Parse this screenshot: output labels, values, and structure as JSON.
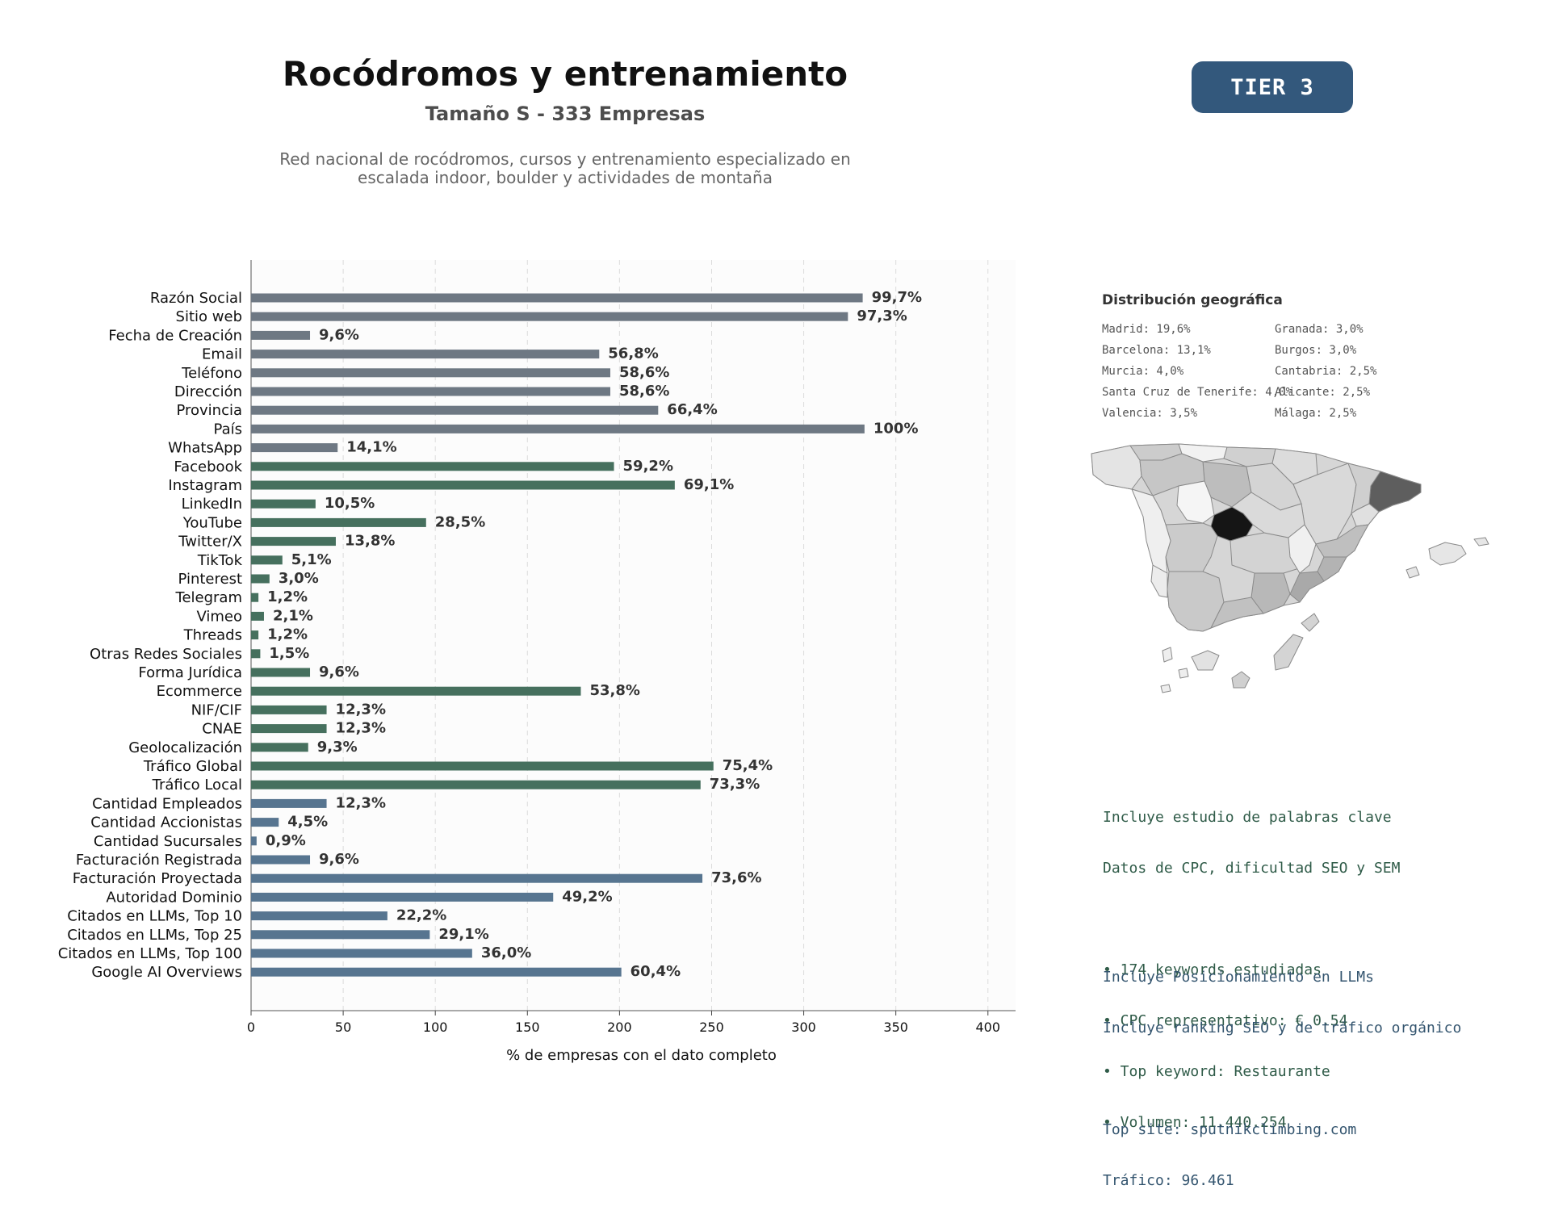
{
  "header": {
    "title": "Rocódromos y entrenamiento",
    "subtitle": "Tamaño S - 333 Empresas",
    "description_line1": "Red nacional de rocódromos, cursos y entrenamiento especializado en",
    "description_line2": "escalada indoor, boulder y actividades de montaña",
    "tier": "TIER 3"
  },
  "chart_data": {
    "type": "bar",
    "orientation": "horizontal",
    "xlabel": "% de empresas con el dato completo",
    "xlim": [
      0,
      415
    ],
    "xticks": [
      0,
      50,
      100,
      150,
      200,
      250,
      300,
      350,
      400
    ],
    "grid": "vertical-dashed",
    "colors": {
      "gray": "#6e7883",
      "green": "#46705e",
      "blue": "#577590"
    },
    "categories": [
      "Razón Social",
      "Sitio web",
      "Fecha de Creación",
      "Email",
      "Teléfono",
      "Dirección",
      "Provincia",
      "País",
      "WhatsApp",
      "Facebook",
      "Instagram",
      "LinkedIn",
      "YouTube",
      "Twitter/X",
      "TikTok",
      "Pinterest",
      "Telegram",
      "Vimeo",
      "Threads",
      "Otras Redes Sociales",
      "Forma Jurídica",
      "Ecommerce",
      "NIF/CIF",
      "CNAE",
      "Geolocalización",
      "Tráfico Global",
      "Tráfico Local",
      "Cantidad Empleados",
      "Cantidad Accionistas",
      "Cantidad Sucursales",
      "Facturación Registrada",
      "Facturación Proyectada",
      "Autoridad Dominio",
      "Citados en LLMs, Top 10",
      "Citados en LLMs, Top 25",
      "Citados en LLMs, Top 100",
      "Google AI Overviews"
    ],
    "values": [
      332,
      324,
      32,
      189,
      195,
      195,
      221,
      333,
      47,
      197,
      230,
      35,
      95,
      46,
      17,
      10,
      4,
      7,
      4,
      5,
      32,
      179,
      41,
      41,
      31,
      251,
      244,
      41,
      15,
      3,
      32,
      245,
      164,
      74,
      97,
      120,
      201
    ],
    "labels": [
      "99,7%",
      "97,3%",
      "9,6%",
      "56,8%",
      "58,6%",
      "58,6%",
      "66,4%",
      "100%",
      "14,1%",
      "59,2%",
      "69,1%",
      "10,5%",
      "28,5%",
      "13,8%",
      "5,1%",
      "3,0%",
      "1,2%",
      "2,1%",
      "1,2%",
      "1,5%",
      "9,6%",
      "53,8%",
      "12,3%",
      "12,3%",
      "9,3%",
      "75,4%",
      "73,3%",
      "12,3%",
      "4,5%",
      "0,9%",
      "9,6%",
      "73,6%",
      "49,2%",
      "22,2%",
      "29,1%",
      "36,0%",
      "60,4%"
    ],
    "groups": [
      "gray",
      "gray",
      "gray",
      "gray",
      "gray",
      "gray",
      "gray",
      "gray",
      "gray",
      "green",
      "green",
      "green",
      "green",
      "green",
      "green",
      "green",
      "green",
      "green",
      "green",
      "green",
      "green",
      "green",
      "green",
      "green",
      "green",
      "green",
      "green",
      "blue",
      "blue",
      "blue",
      "blue",
      "blue",
      "blue",
      "blue",
      "blue",
      "blue",
      "blue"
    ]
  },
  "geo": {
    "title": "Distribución geográfica",
    "items": [
      "Madrid: 19,6%",
      "Barcelona: 13,1%",
      "Murcia: 4,0%",
      "Santa Cruz de Tenerife: 4,0%",
      "Valencia: 3,5%",
      "Granada: 3,0%",
      "Burgos: 3,0%",
      "Cantabria: 2,5%",
      "Alicante: 2,5%",
      "Málaga: 2,5%"
    ]
  },
  "seo": {
    "line1": "Incluye estudio de palabras clave",
    "line2": "Datos de CPC, dificultad SEO y SEM",
    "bullet1": "• 174 keywords estudiadas",
    "bullet2": "• CPC representativo: € 0.54",
    "bullet3": "• Top keyword: Restaurante",
    "bullet4": "• Volumen: 11.440.254"
  },
  "llm": {
    "line1": "Incluye Posicionamiento en LLMs",
    "line2": "Incluye ranking SEO y de tráfico orgánico",
    "site": "Top site: sputnikclimbing.com",
    "traffic": "Tráfico: 96.461"
  }
}
